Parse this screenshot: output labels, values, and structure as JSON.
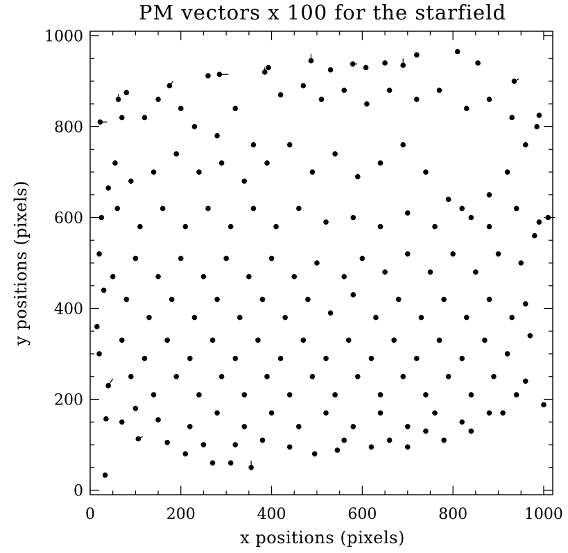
{
  "chart_data": {
    "type": "scatter",
    "title": "PM vectors x 100 for the starfield",
    "xlabel": "x positions (pixels)",
    "ylabel": "y positions (pixels)",
    "xlim": [
      0,
      1020
    ],
    "ylim": [
      -10,
      1010
    ],
    "xticks": [
      0,
      200,
      400,
      600,
      800,
      1000
    ],
    "yticks": [
      0,
      200,
      400,
      600,
      800,
      1000
    ],
    "xtick_labels": [
      "0",
      "200",
      "400",
      "600",
      "800",
      "1000"
    ],
    "ytick_labels": [
      "0",
      "200",
      "400",
      "600",
      "800",
      "1000"
    ],
    "grid": false,
    "legend": "none",
    "marker": "filled circle with proper-motion vector line",
    "color": "#000000",
    "points": [
      [
        33,
        33,
        0,
        0
      ],
      [
        35,
        157,
        0,
        0
      ],
      [
        106,
        113,
        10,
        5
      ],
      [
        22,
        810,
        15,
        0
      ],
      [
        62,
        860,
        0,
        12
      ],
      [
        80,
        875,
        0,
        0
      ],
      [
        175,
        890,
        8,
        10
      ],
      [
        260,
        912,
        0,
        0
      ],
      [
        285,
        915,
        20,
        0
      ],
      [
        385,
        920,
        0,
        10
      ],
      [
        393,
        930,
        0,
        0
      ],
      [
        487,
        945,
        0,
        15
      ],
      [
        530,
        925,
        0,
        0
      ],
      [
        579,
        938,
        10,
        0
      ],
      [
        608,
        930,
        0,
        0
      ],
      [
        650,
        940,
        0,
        0
      ],
      [
        690,
        935,
        0,
        15
      ],
      [
        720,
        958,
        0,
        0
      ],
      [
        810,
        965,
        0,
        0
      ],
      [
        855,
        940,
        0,
        0
      ],
      [
        935,
        900,
        10,
        5
      ],
      [
        990,
        825,
        0,
        0
      ],
      [
        985,
        800,
        0,
        0
      ],
      [
        1010,
        600,
        15,
        0
      ],
      [
        990,
        590,
        0,
        0
      ],
      [
        960,
        410,
        0,
        0
      ],
      [
        1000,
        188,
        0,
        0
      ],
      [
        960,
        240,
        0,
        0
      ],
      [
        910,
        170,
        0,
        0
      ],
      [
        840,
        130,
        0,
        0
      ],
      [
        780,
        110,
        0,
        0
      ],
      [
        700,
        95,
        0,
        0
      ],
      [
        620,
        95,
        0,
        0
      ],
      [
        545,
        88,
        0,
        0
      ],
      [
        495,
        80,
        0,
        0
      ],
      [
        440,
        95,
        0,
        0
      ],
      [
        355,
        50,
        0,
        15
      ],
      [
        310,
        60,
        0,
        0
      ],
      [
        270,
        60,
        0,
        0
      ],
      [
        210,
        80,
        0,
        0
      ],
      [
        170,
        105,
        0,
        0
      ],
      [
        150,
        155,
        0,
        0
      ],
      [
        100,
        180,
        0,
        0
      ],
      [
        70,
        150,
        0,
        0
      ],
      [
        40,
        230,
        10,
        15
      ],
      [
        20,
        300,
        0,
        0
      ],
      [
        15,
        360,
        0,
        0
      ],
      [
        30,
        440,
        0,
        0
      ],
      [
        20,
        520,
        0,
        0
      ],
      [
        25,
        600,
        0,
        0
      ],
      [
        40,
        665,
        0,
        0
      ],
      [
        55,
        720,
        0,
        0
      ],
      [
        70,
        820,
        0,
        0
      ],
      [
        120,
        820,
        0,
        0
      ],
      [
        150,
        860,
        0,
        0
      ],
      [
        200,
        840,
        0,
        0
      ],
      [
        230,
        800,
        0,
        0
      ],
      [
        280,
        780,
        0,
        0
      ],
      [
        320,
        840,
        0,
        0
      ],
      [
        360,
        760,
        0,
        0
      ],
      [
        420,
        870,
        0,
        0
      ],
      [
        470,
        890,
        0,
        0
      ],
      [
        510,
        860,
        0,
        0
      ],
      [
        560,
        880,
        0,
        0
      ],
      [
        610,
        850,
        0,
        0
      ],
      [
        660,
        880,
        0,
        0
      ],
      [
        720,
        860,
        0,
        0
      ],
      [
        770,
        880,
        0,
        0
      ],
      [
        830,
        840,
        0,
        0
      ],
      [
        880,
        860,
        0,
        0
      ],
      [
        930,
        820,
        0,
        0
      ],
      [
        960,
        760,
        0,
        0
      ],
      [
        920,
        700,
        0,
        0
      ],
      [
        880,
        650,
        0,
        0
      ],
      [
        840,
        600,
        0,
        0
      ],
      [
        790,
        640,
        0,
        0
      ],
      [
        740,
        700,
        0,
        0
      ],
      [
        690,
        760,
        0,
        0
      ],
      [
        640,
        720,
        0,
        0
      ],
      [
        590,
        690,
        0,
        0
      ],
      [
        540,
        740,
        0,
        0
      ],
      [
        490,
        700,
        0,
        0
      ],
      [
        440,
        760,
        0,
        0
      ],
      [
        390,
        720,
        0,
        0
      ],
      [
        340,
        680,
        0,
        0
      ],
      [
        290,
        720,
        0,
        0
      ],
      [
        240,
        700,
        0,
        0
      ],
      [
        190,
        740,
        0,
        0
      ],
      [
        140,
        700,
        0,
        0
      ],
      [
        90,
        680,
        0,
        0
      ],
      [
        60,
        620,
        0,
        0
      ],
      [
        110,
        580,
        0,
        0
      ],
      [
        160,
        620,
        0,
        0
      ],
      [
        210,
        580,
        0,
        0
      ],
      [
        260,
        620,
        0,
        0
      ],
      [
        310,
        580,
        0,
        0
      ],
      [
        360,
        620,
        0,
        0
      ],
      [
        410,
        580,
        0,
        0
      ],
      [
        460,
        620,
        0,
        0
      ],
      [
        520,
        590,
        0,
        0
      ],
      [
        580,
        600,
        0,
        0
      ],
      [
        640,
        580,
        0,
        0
      ],
      [
        700,
        610,
        0,
        0
      ],
      [
        760,
        580,
        0,
        0
      ],
      [
        820,
        620,
        0,
        0
      ],
      [
        880,
        580,
        0,
        0
      ],
      [
        940,
        620,
        0,
        0
      ],
      [
        980,
        560,
        0,
        0
      ],
      [
        950,
        500,
        0,
        0
      ],
      [
        900,
        520,
        0,
        0
      ],
      [
        850,
        480,
        0,
        0
      ],
      [
        800,
        520,
        0,
        0
      ],
      [
        750,
        480,
        0,
        0
      ],
      [
        700,
        520,
        0,
        0
      ],
      [
        650,
        480,
        0,
        0
      ],
      [
        600,
        510,
        0,
        0
      ],
      [
        560,
        470,
        0,
        0
      ],
      [
        500,
        500,
        0,
        0
      ],
      [
        450,
        470,
        0,
        0
      ],
      [
        400,
        510,
        0,
        0
      ],
      [
        350,
        470,
        0,
        0
      ],
      [
        300,
        510,
        0,
        0
      ],
      [
        250,
        470,
        0,
        0
      ],
      [
        200,
        510,
        0,
        0
      ],
      [
        150,
        470,
        0,
        0
      ],
      [
        100,
        510,
        0,
        0
      ],
      [
        50,
        470,
        0,
        0
      ],
      [
        80,
        420,
        0,
        0
      ],
      [
        130,
        380,
        0,
        0
      ],
      [
        180,
        420,
        0,
        0
      ],
      [
        230,
        380,
        0,
        0
      ],
      [
        280,
        420,
        0,
        0
      ],
      [
        330,
        380,
        0,
        0
      ],
      [
        380,
        420,
        0,
        0
      ],
      [
        430,
        380,
        0,
        0
      ],
      [
        480,
        420,
        0,
        0
      ],
      [
        530,
        390,
        0,
        0
      ],
      [
        580,
        430,
        0,
        0
      ],
      [
        630,
        380,
        0,
        0
      ],
      [
        680,
        420,
        0,
        0
      ],
      [
        730,
        380,
        0,
        0
      ],
      [
        780,
        420,
        0,
        0
      ],
      [
        830,
        380,
        0,
        0
      ],
      [
        880,
        420,
        0,
        0
      ],
      [
        930,
        380,
        0,
        0
      ],
      [
        970,
        340,
        0,
        0
      ],
      [
        920,
        300,
        0,
        0
      ],
      [
        870,
        330,
        0,
        0
      ],
      [
        820,
        290,
        0,
        0
      ],
      [
        770,
        330,
        0,
        0
      ],
      [
        720,
        290,
        0,
        0
      ],
      [
        670,
        330,
        0,
        0
      ],
      [
        620,
        290,
        0,
        0
      ],
      [
        570,
        330,
        0,
        0
      ],
      [
        520,
        290,
        0,
        0
      ],
      [
        470,
        330,
        0,
        0
      ],
      [
        420,
        290,
        0,
        0
      ],
      [
        370,
        330,
        0,
        0
      ],
      [
        320,
        290,
        0,
        0
      ],
      [
        270,
        330,
        0,
        0
      ],
      [
        220,
        290,
        0,
        0
      ],
      [
        170,
        330,
        0,
        0
      ],
      [
        120,
        290,
        0,
        0
      ],
      [
        70,
        330,
        0,
        0
      ],
      [
        90,
        250,
        0,
        0
      ],
      [
        140,
        210,
        0,
        0
      ],
      [
        190,
        250,
        0,
        0
      ],
      [
        240,
        210,
        0,
        0
      ],
      [
        290,
        250,
        0,
        0
      ],
      [
        340,
        210,
        0,
        0
      ],
      [
        390,
        250,
        0,
        0
      ],
      [
        440,
        210,
        0,
        0
      ],
      [
        490,
        250,
        0,
        0
      ],
      [
        540,
        210,
        0,
        0
      ],
      [
        590,
        250,
        0,
        0
      ],
      [
        640,
        210,
        0,
        0
      ],
      [
        690,
        250,
        0,
        0
      ],
      [
        740,
        210,
        0,
        0
      ],
      [
        790,
        250,
        0,
        0
      ],
      [
        840,
        210,
        0,
        0
      ],
      [
        890,
        250,
        0,
        0
      ],
      [
        940,
        210,
        0,
        0
      ],
      [
        880,
        170,
        0,
        0
      ],
      [
        820,
        150,
        0,
        0
      ],
      [
        760,
        170,
        0,
        0
      ],
      [
        700,
        140,
        0,
        0
      ],
      [
        640,
        170,
        0,
        0
      ],
      [
        580,
        140,
        0,
        0
      ],
      [
        520,
        170,
        0,
        0
      ],
      [
        460,
        140,
        0,
        0
      ],
      [
        400,
        170,
        0,
        0
      ],
      [
        340,
        140,
        0,
        0
      ],
      [
        280,
        170,
        0,
        0
      ],
      [
        220,
        140,
        0,
        0
      ],
      [
        250,
        100,
        0,
        0
      ],
      [
        320,
        100,
        0,
        0
      ],
      [
        380,
        110,
        0,
        0
      ],
      [
        560,
        110,
        0,
        0
      ],
      [
        660,
        110,
        0,
        0
      ],
      [
        740,
        130,
        0,
        0
      ]
    ]
  }
}
